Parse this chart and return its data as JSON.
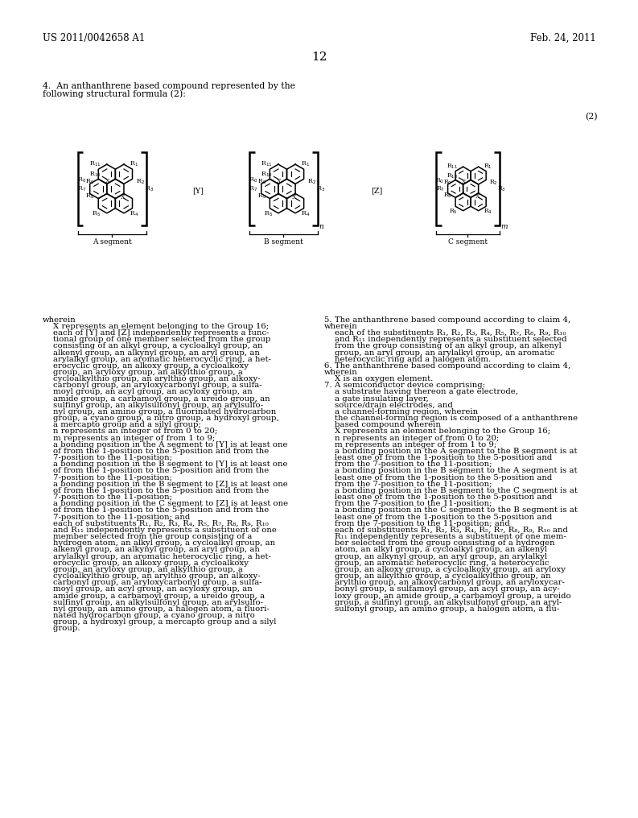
{
  "page_header_left": "US 2011/0042658 A1",
  "page_header_right": "Feb. 24, 2011",
  "page_number": "12",
  "formula_label": "(2)",
  "segment_a_label": "A segment",
  "segment_b_label": "B segment",
  "segment_c_label": "C segment",
  "connector_y": "[Y]",
  "connector_z": "[Z]",
  "bg_color": "#ffffff",
  "text_color": "#000000",
  "left_text_lines": [
    "wherein",
    "    X represents an element belonging to the Group 16;",
    "    each of [Y] and [Z] independently represents a func-",
    "    tional group of one member selected from the group",
    "    consisting of an alkyl group, a cycloalkyl group, an",
    "    alkenyl group, an alkynyl group, an aryl group, an",
    "    arylalkyl group, an aromatic heterocyclic ring, a het-",
    "    erocyclic group, an alkoxy group, a cycloalkoxy",
    "    group, an aryloxy group, an alkylthio group, a",
    "    cycloalkylthio group, an arylthio group, an alkoxy-",
    "    carbonyl group, an aryloxycarbonyl group, a sulfa-",
    "    moyl group, an acyl group, an acyloxy group, an",
    "    amide group, a carbamoyl group, a ureido group, an",
    "    sulfinyl group, an alkylsulfonyl group, an arylsulfo-",
    "    nyl group, an amino group, a fluorinated hydrocarbon",
    "    group, a cyano group, a nitro group, a hydroxyl group,",
    "    a mercapto group and a silyl group;",
    "    n represents an integer of from 0 to 20;",
    "    m represents an integer of from 1 to 9;",
    "    a bonding position in the A segment to [Y] is at least one",
    "    of from the 1-position to the 5-position and from the",
    "    7-position to the 11-position;",
    "    a bonding position in the B segment to [Y] is at least one",
    "    of from the 1-position to the 5-position and from the",
    "    7-position to the 11-position;",
    "    a bonding position in the B segment to [Z] is at least one",
    "    of from the 1-position to the 5-position and from the",
    "    7-position to the 11-position;",
    "    a bonding position in the C segment to [Z] is at least one",
    "    of from the 1-position to the 5-position and from the",
    "    7-position to the 11-position; and",
    "    each of substituents R₁, R₂, R₃, R₄, R₅, R₇, R₈, R₉, R₁₀",
    "    and R₁₁ independently represents a substituent of one",
    "    member selected from the group consisting of a",
    "    hydrogen atom, an alkyl group, a cycloalkyl group, an",
    "    alkenyl group, an alkynyl group, an aryl group, an",
    "    arylalkyl group, an aromatic heterocyclic ring, a het-",
    "    erocyclic group, an alkoxy group, a cycloalkoxy",
    "    group, an aryloxy group, an alkylthio group, a",
    "    cycloalkylthio group, an arylthio group, an alkoxy-",
    "    carbonyl group, an aryloxycarbonyl group, a sulfa-",
    "    moyl group, an acyl group, an acyloxy group, an",
    "    amide group, a carbamoyl group, a ureido group, a",
    "    sulfinyl group, an alkylsulfonyl group, an arylsulfo-",
    "    nyl group, an amino group, a halogen atom, a fluori-",
    "    nated hydrocarbon group, a cyano group, a nitro",
    "    group, a hydroxyl group, a mercapto group and a silyl",
    "    group."
  ],
  "right_text_lines": [
    "5. The anthanthrene based compound according to claim 4,",
    "wherein",
    "    each of the substituents R₁, R₂, R₃, R₄, R₅, R₇, R₈, R₉, R₁₀",
    "    and R₁₁ independently represents a substituent selected",
    "    from the group consisting of an alkyl group, an alkenyl",
    "    group, an aryl group, an arylalkyl group, an aromatic",
    "    heterocyclic ring and a halogen atom.",
    "6. The anthanthrene based compound according to claim 4,",
    "wherein",
    "    X is an oxygen element.",
    "7. A semiconductor device comprising:",
    "    a substrate having thereon a gate electrode,",
    "    a gate insulating layer,",
    "    source/drain electrodes, and",
    "    a channel-forming region, wherein",
    "    the channel-forming region is composed of a anthanthrene",
    "    based compound wherein",
    "    X represents an element belonging to the Group 16;",
    "    n represents an integer of from 0 to 20;",
    "    m represents an integer of from 1 to 9;",
    "    a bonding position in the A segment to the B segment is at",
    "    least one of from the 1-position to the 5-position and",
    "    from the 7-position to the 11-position;",
    "    a bonding position in the B segment to the A segment is at",
    "    least one of from the 1-position to the 5-position and",
    "    from the 7-position to the 11-position;",
    "    a bonding position in the B segment to the C segment is at",
    "    least one of from the 1-position to the 5-position and",
    "    from the 7-position to the 11-position;",
    "    a bonding position in the C segment to the B segment is at",
    "    least one of from the 1-position to the 5-position and",
    "    from the 7-position to the 11-position; and",
    "    each of substituents R₁, R₂, R₃, R₄, R₅, R₇, R₈, R₉, R₁₀ and",
    "    R₁₁ independently represents a substituent of one mem-",
    "    ber selected from the group consisting of a hydrogen",
    "    atom, an alkyl group, a cycloalkyl group, an alkenyl",
    "    group, an alkynyl group, an aryl group, an arylalkyl",
    "    group, an aromatic heterocyclic ring, a heterocyclic",
    "    group, an alkoxy group, a cycloalkoxy group, an aryloxy",
    "    group, an alkylthio group, a cycloalkylthio group, an",
    "    arylthio group, an alkoxycarbonyl group, an aryloxycar-",
    "    bonyl group, a sulfamoyl group, an acyl group, an acy-",
    "    loxy group, an amide group, a carbamoyl group, a ureido",
    "    group, a sulfinyl group, an alkylsulfonyl group, an aryl-",
    "    sulfonyl group, an amino group, a halogen atom, a flu-"
  ]
}
